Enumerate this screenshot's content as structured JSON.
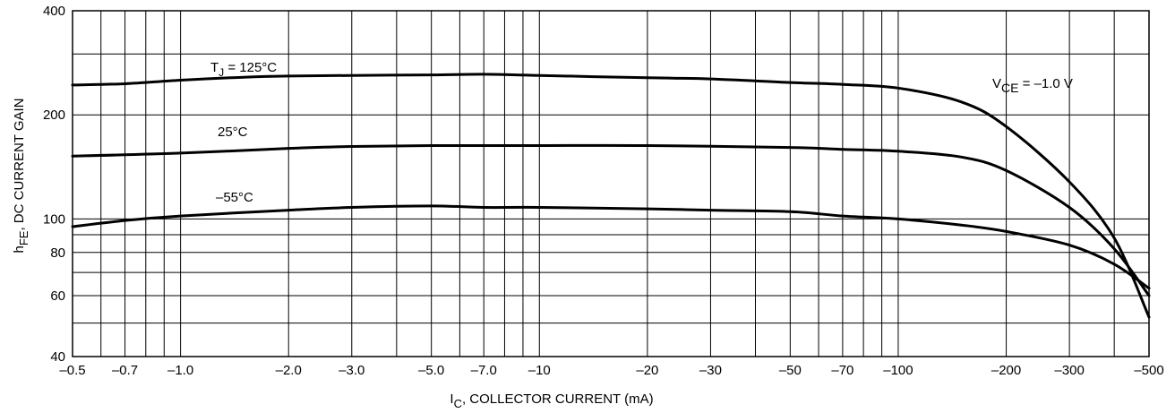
{
  "chart_data": {
    "type": "line",
    "xscale": "log",
    "yscale": "log",
    "xlim": [
      -0.5,
      -500
    ],
    "ylim": [
      40,
      400
    ],
    "grid": true,
    "xlabel": {
      "main": "I",
      "sub": "C",
      "rest": ", COLLECTOR CURRENT (mA)"
    },
    "ylabel": {
      "main": "h",
      "sub": "FE",
      "rest": ", DC CURRENT GAIN"
    },
    "x_ticks": [
      {
        "value": -0.5,
        "label": "–0.5"
      },
      {
        "value": -0.7,
        "label": "–0.7"
      },
      {
        "value": -1.0,
        "label": "–1.0"
      },
      {
        "value": -2.0,
        "label": "–2.0"
      },
      {
        "value": -3.0,
        "label": "–3.0"
      },
      {
        "value": -5.0,
        "label": "–5.0"
      },
      {
        "value": -7.0,
        "label": "–7.0"
      },
      {
        "value": -10,
        "label": "–10"
      },
      {
        "value": -20,
        "label": "–20"
      },
      {
        "value": -30,
        "label": "–30"
      },
      {
        "value": -50,
        "label": "–50"
      },
      {
        "value": -70,
        "label": "–70"
      },
      {
        "value": -100,
        "label": "–100"
      },
      {
        "value": -200,
        "label": "–200"
      },
      {
        "value": -300,
        "label": "–300"
      },
      {
        "value": -500,
        "label": "–500"
      }
    ],
    "x_grid": [
      -0.5,
      -0.6,
      -0.7,
      -0.8,
      -0.9,
      -1.0,
      -2,
      -3,
      -4,
      -5,
      -6,
      -7,
      -8,
      -9,
      -10,
      -20,
      -30,
      -40,
      -50,
      -60,
      -70,
      -80,
      -90,
      -100,
      -200,
      -300,
      -400,
      -500
    ],
    "y_ticks": [
      {
        "value": 40,
        "label": "40"
      },
      {
        "value": 60,
        "label": "60"
      },
      {
        "value": 80,
        "label": "80"
      },
      {
        "value": 100,
        "label": "100"
      },
      {
        "value": 200,
        "label": "200"
      },
      {
        "value": 400,
        "label": "400"
      }
    ],
    "y_grid": [
      40,
      50,
      60,
      70,
      80,
      90,
      100,
      200,
      300,
      400
    ],
    "series": [
      {
        "name": "T",
        "name_sub": "J",
        "name_rest": " = 125°C",
        "points": [
          [
            -0.5,
            244
          ],
          [
            -0.7,
            246
          ],
          [
            -1.0,
            252
          ],
          [
            -1.5,
            257
          ],
          [
            -2,
            259
          ],
          [
            -3,
            260
          ],
          [
            -5,
            261
          ],
          [
            -7,
            262
          ],
          [
            -10,
            260
          ],
          [
            -20,
            256
          ],
          [
            -30,
            254
          ],
          [
            -50,
            248
          ],
          [
            -70,
            245
          ],
          [
            -100,
            239
          ],
          [
            -150,
            218
          ],
          [
            -200,
            185
          ],
          [
            -300,
            128
          ],
          [
            -400,
            88
          ],
          [
            -500,
            52
          ]
        ]
      },
      {
        "name": "25°C",
        "points": [
          [
            -0.5,
            152
          ],
          [
            -1.0,
            155
          ],
          [
            -2,
            160
          ],
          [
            -3,
            162
          ],
          [
            -5,
            163
          ],
          [
            -10,
            163
          ],
          [
            -20,
            163
          ],
          [
            -50,
            161
          ],
          [
            -70,
            159
          ],
          [
            -100,
            157
          ],
          [
            -150,
            151
          ],
          [
            -200,
            138
          ],
          [
            -300,
            108
          ],
          [
            -400,
            82
          ],
          [
            -500,
            60
          ]
        ]
      },
      {
        "name": "–55°C",
        "points": [
          [
            -0.5,
            95
          ],
          [
            -0.7,
            99
          ],
          [
            -1.0,
            102
          ],
          [
            -2,
            106
          ],
          [
            -3,
            108
          ],
          [
            -5,
            109
          ],
          [
            -7,
            108
          ],
          [
            -10,
            108
          ],
          [
            -20,
            107
          ],
          [
            -30,
            106
          ],
          [
            -50,
            105
          ],
          [
            -70,
            102
          ],
          [
            -100,
            100
          ],
          [
            -150,
            96
          ],
          [
            -200,
            92
          ],
          [
            -300,
            84
          ],
          [
            -400,
            74
          ],
          [
            -500,
            63
          ]
        ]
      }
    ],
    "annotations": [
      {
        "text": "V",
        "sub": "CE",
        "rest": " = –1.0 V"
      }
    ]
  }
}
